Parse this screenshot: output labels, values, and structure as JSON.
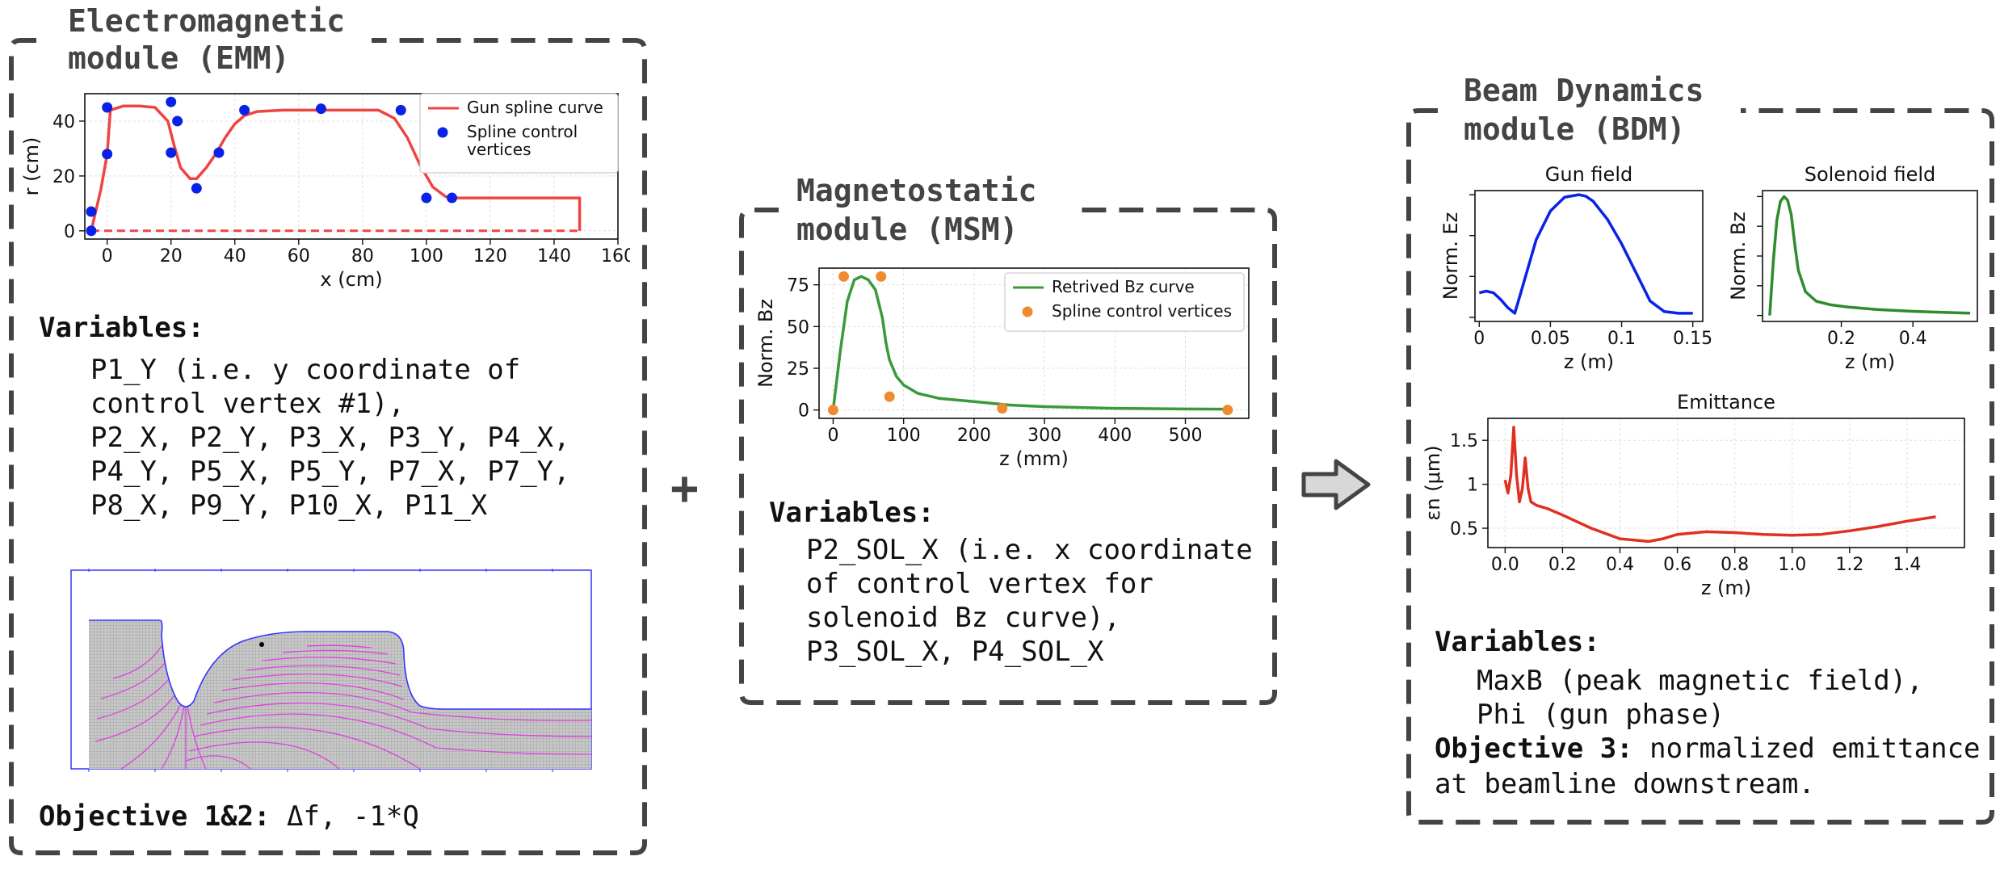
{
  "emm": {
    "title_line1": "Electromagnetic",
    "title_line2": "module (EMM)",
    "variables_heading": "Variables:",
    "variables_lines": [
      "P1_Y (i.e. y coordinate of",
      "control vertex #1),",
      "P2_X, P2_Y, P3_X, P3_Y, P4_X,",
      "P4_Y, P5_X, P5_Y, P7_X, P7_Y,",
      "P8_X, P9_Y, P10_X, P11_X"
    ],
    "objective_label": "Objective 1&2:",
    "objective_text": " Δf, -1*Q"
  },
  "msm": {
    "title_line1": "Magnetostatic",
    "title_line2": "module (MSM)",
    "variables_heading": "Variables:",
    "variables_lines": [
      "P2_SOL_X (i.e. x coordinate",
      "of control vertex for",
      "solenoid Bz curve),",
      "P3_SOL_X, P4_SOL_X"
    ]
  },
  "bdm": {
    "title_line1": "Beam Dynamics",
    "title_line2": "module (BDM)",
    "variables_heading": "Variables:",
    "variables_lines": [
      "MaxB (peak magnetic field),",
      "Phi (gun phase)"
    ],
    "objective_label": "Objective 3:",
    "objective_line1": " normalized emittance",
    "objective_line2": "at beamline downstream."
  },
  "plus_sign": "+",
  "colors": {
    "red": "#ef4444",
    "blue": "#0a22e6",
    "green": "#3a9a3a",
    "orange": "#f08a30",
    "frame": "#444444",
    "mesh_line": "#5555ff",
    "field_line": "#e040e0"
  },
  "icons": {
    "arrow": "right-arrow-icon"
  },
  "chart_data": [
    {
      "id": "gun-geometry",
      "type": "line",
      "xlabel": "x (cm)",
      "ylabel": "r (cm)",
      "xlim": [
        -7,
        160
      ],
      "ylim": [
        -3,
        50
      ],
      "xticks": [
        0,
        20,
        40,
        60,
        80,
        100,
        120,
        140,
        160
      ],
      "yticks": [
        0,
        20,
        40
      ],
      "grid": true,
      "legend_position": "top-right",
      "series": [
        {
          "name": "Gun spline curve",
          "kind": "line",
          "color": "#ef4444",
          "x": [
            -5,
            -2,
            0,
            1,
            5,
            10,
            15,
            19,
            21,
            23,
            26,
            28,
            31,
            34,
            37,
            40,
            43,
            47,
            55,
            70,
            85,
            90,
            94,
            98,
            102,
            106,
            110,
            120,
            135,
            148,
            148
          ],
          "y": [
            0,
            15,
            28,
            44,
            45.5,
            45.5,
            45,
            40,
            31,
            23,
            19,
            19,
            23,
            28,
            34,
            39,
            42,
            43.5,
            44,
            44,
            44,
            41,
            34,
            24,
            16,
            12.5,
            12,
            12,
            12,
            12,
            0
          ]
        },
        {
          "name": "",
          "kind": "dashed",
          "color": "#ef4444",
          "x": [
            -5,
            148
          ],
          "y": [
            0,
            0
          ]
        },
        {
          "name": "Spline control vertices",
          "kind": "scatter",
          "color": "#0a22e6",
          "x": [
            -5,
            -5,
            0,
            0,
            20,
            20,
            22,
            28,
            35,
            43,
            67,
            92,
            100,
            108
          ],
          "y": [
            0,
            7,
            28,
            45,
            47,
            28.5,
            40,
            15.5,
            28.5,
            44,
            44.5,
            44,
            12,
            12
          ]
        }
      ]
    },
    {
      "id": "solenoid-bz",
      "type": "line",
      "xlabel": "z (mm)",
      "ylabel": "Norm. Bz",
      "xlim": [
        -20,
        590
      ],
      "ylim": [
        -5,
        85
      ],
      "xticks": [
        0,
        100,
        200,
        300,
        400,
        500
      ],
      "yticks": [
        0,
        25,
        50,
        75
      ],
      "grid": true,
      "legend_position": "top-right",
      "series": [
        {
          "name": "Retrived Bz curve",
          "kind": "line",
          "color": "#3a9a3a",
          "x": [
            0,
            10,
            20,
            30,
            40,
            50,
            60,
            70,
            75,
            80,
            90,
            100,
            120,
            150,
            200,
            250,
            300,
            400,
            500,
            560
          ],
          "y": [
            0,
            35,
            65,
            78,
            80,
            78,
            72,
            55,
            40,
            30,
            20,
            15,
            10,
            7,
            5,
            3,
            2,
            1,
            0.6,
            0.5
          ]
        },
        {
          "name": "Spline control vertices",
          "kind": "scatter",
          "color": "#f08a30",
          "x": [
            0,
            15,
            68,
            80,
            240,
            560
          ],
          "y": [
            0,
            80,
            80,
            8,
            1,
            0
          ]
        }
      ]
    },
    {
      "id": "gun-field",
      "type": "line",
      "title": "Gun field",
      "xlabel": "z (m)",
      "ylabel": "Norm. Ez",
      "xlim": [
        -0.003,
        0.157
      ],
      "ylim": [
        -0.55,
        1.05
      ],
      "xticks": [
        0.0,
        0.05,
        0.1,
        0.15
      ],
      "yticks": [
        -0.5,
        0,
        0.5,
        1.0
      ],
      "grid": false,
      "series": [
        {
          "name": "",
          "kind": "line",
          "color": "#0a22e6",
          "x": [
            0,
            0.005,
            0.01,
            0.015,
            0.02,
            0.025,
            0.03,
            0.035,
            0.04,
            0.05,
            0.06,
            0.07,
            0.075,
            0.08,
            0.09,
            0.1,
            0.11,
            0.12,
            0.13,
            0.14,
            0.15
          ],
          "y": [
            -0.2,
            -0.18,
            -0.2,
            -0.28,
            -0.38,
            -0.45,
            -0.15,
            0.15,
            0.45,
            0.8,
            0.97,
            1.0,
            0.98,
            0.92,
            0.7,
            0.4,
            0.05,
            -0.3,
            -0.43,
            -0.45,
            -0.45
          ]
        }
      ]
    },
    {
      "id": "solenoid-field",
      "type": "line",
      "title": "Solenoid field",
      "xlabel": "z (m)",
      "ylabel": "Norm. Bz",
      "xlim": [
        -0.02,
        0.58
      ],
      "ylim": [
        -0.05,
        1.05
      ],
      "xticks": [
        0.2,
        0.4
      ],
      "yticks": [
        0,
        0.25,
        0.5,
        0.75,
        1.0
      ],
      "grid": false,
      "series": [
        {
          "name": "",
          "kind": "line",
          "color": "#2e8b2e",
          "x": [
            0,
            0.01,
            0.02,
            0.03,
            0.04,
            0.05,
            0.06,
            0.07,
            0.08,
            0.1,
            0.13,
            0.17,
            0.22,
            0.3,
            0.4,
            0.5,
            0.56
          ],
          "y": [
            0,
            0.45,
            0.8,
            0.96,
            1.0,
            0.97,
            0.85,
            0.6,
            0.38,
            0.2,
            0.12,
            0.09,
            0.07,
            0.05,
            0.035,
            0.025,
            0.02
          ]
        }
      ]
    },
    {
      "id": "emittance",
      "type": "line",
      "title": "Emittance",
      "xlabel": "z (m)",
      "ylabel": "εn (μm)",
      "xlim": [
        -0.06,
        1.6
      ],
      "ylim": [
        0.28,
        1.75
      ],
      "xticks": [
        0.0,
        0.2,
        0.4,
        0.6,
        0.8,
        1.0,
        1.2,
        1.4
      ],
      "xtick_labels": [
        "0.0",
        "0.2",
        "0.4",
        "0.6",
        "0.8",
        "1.0",
        "1.2",
        "1.4"
      ],
      "yticks": [
        0.5,
        1.0,
        1.5
      ],
      "grid": true,
      "series": [
        {
          "name": "",
          "kind": "line",
          "color": "#e03020",
          "x": [
            0,
            0.01,
            0.02,
            0.03,
            0.04,
            0.05,
            0.06,
            0.07,
            0.08,
            0.09,
            0.1,
            0.11,
            0.12,
            0.15,
            0.2,
            0.3,
            0.4,
            0.5,
            0.55,
            0.6,
            0.7,
            0.8,
            0.9,
            1.0,
            1.1,
            1.2,
            1.3,
            1.4,
            1.5
          ],
          "y": [
            1.05,
            0.9,
            1.1,
            1.65,
            1.1,
            0.8,
            0.95,
            1.3,
            0.95,
            0.8,
            0.78,
            0.76,
            0.75,
            0.72,
            0.65,
            0.5,
            0.38,
            0.35,
            0.38,
            0.43,
            0.46,
            0.45,
            0.43,
            0.42,
            0.43,
            0.47,
            0.52,
            0.58,
            0.63
          ]
        }
      ]
    }
  ]
}
